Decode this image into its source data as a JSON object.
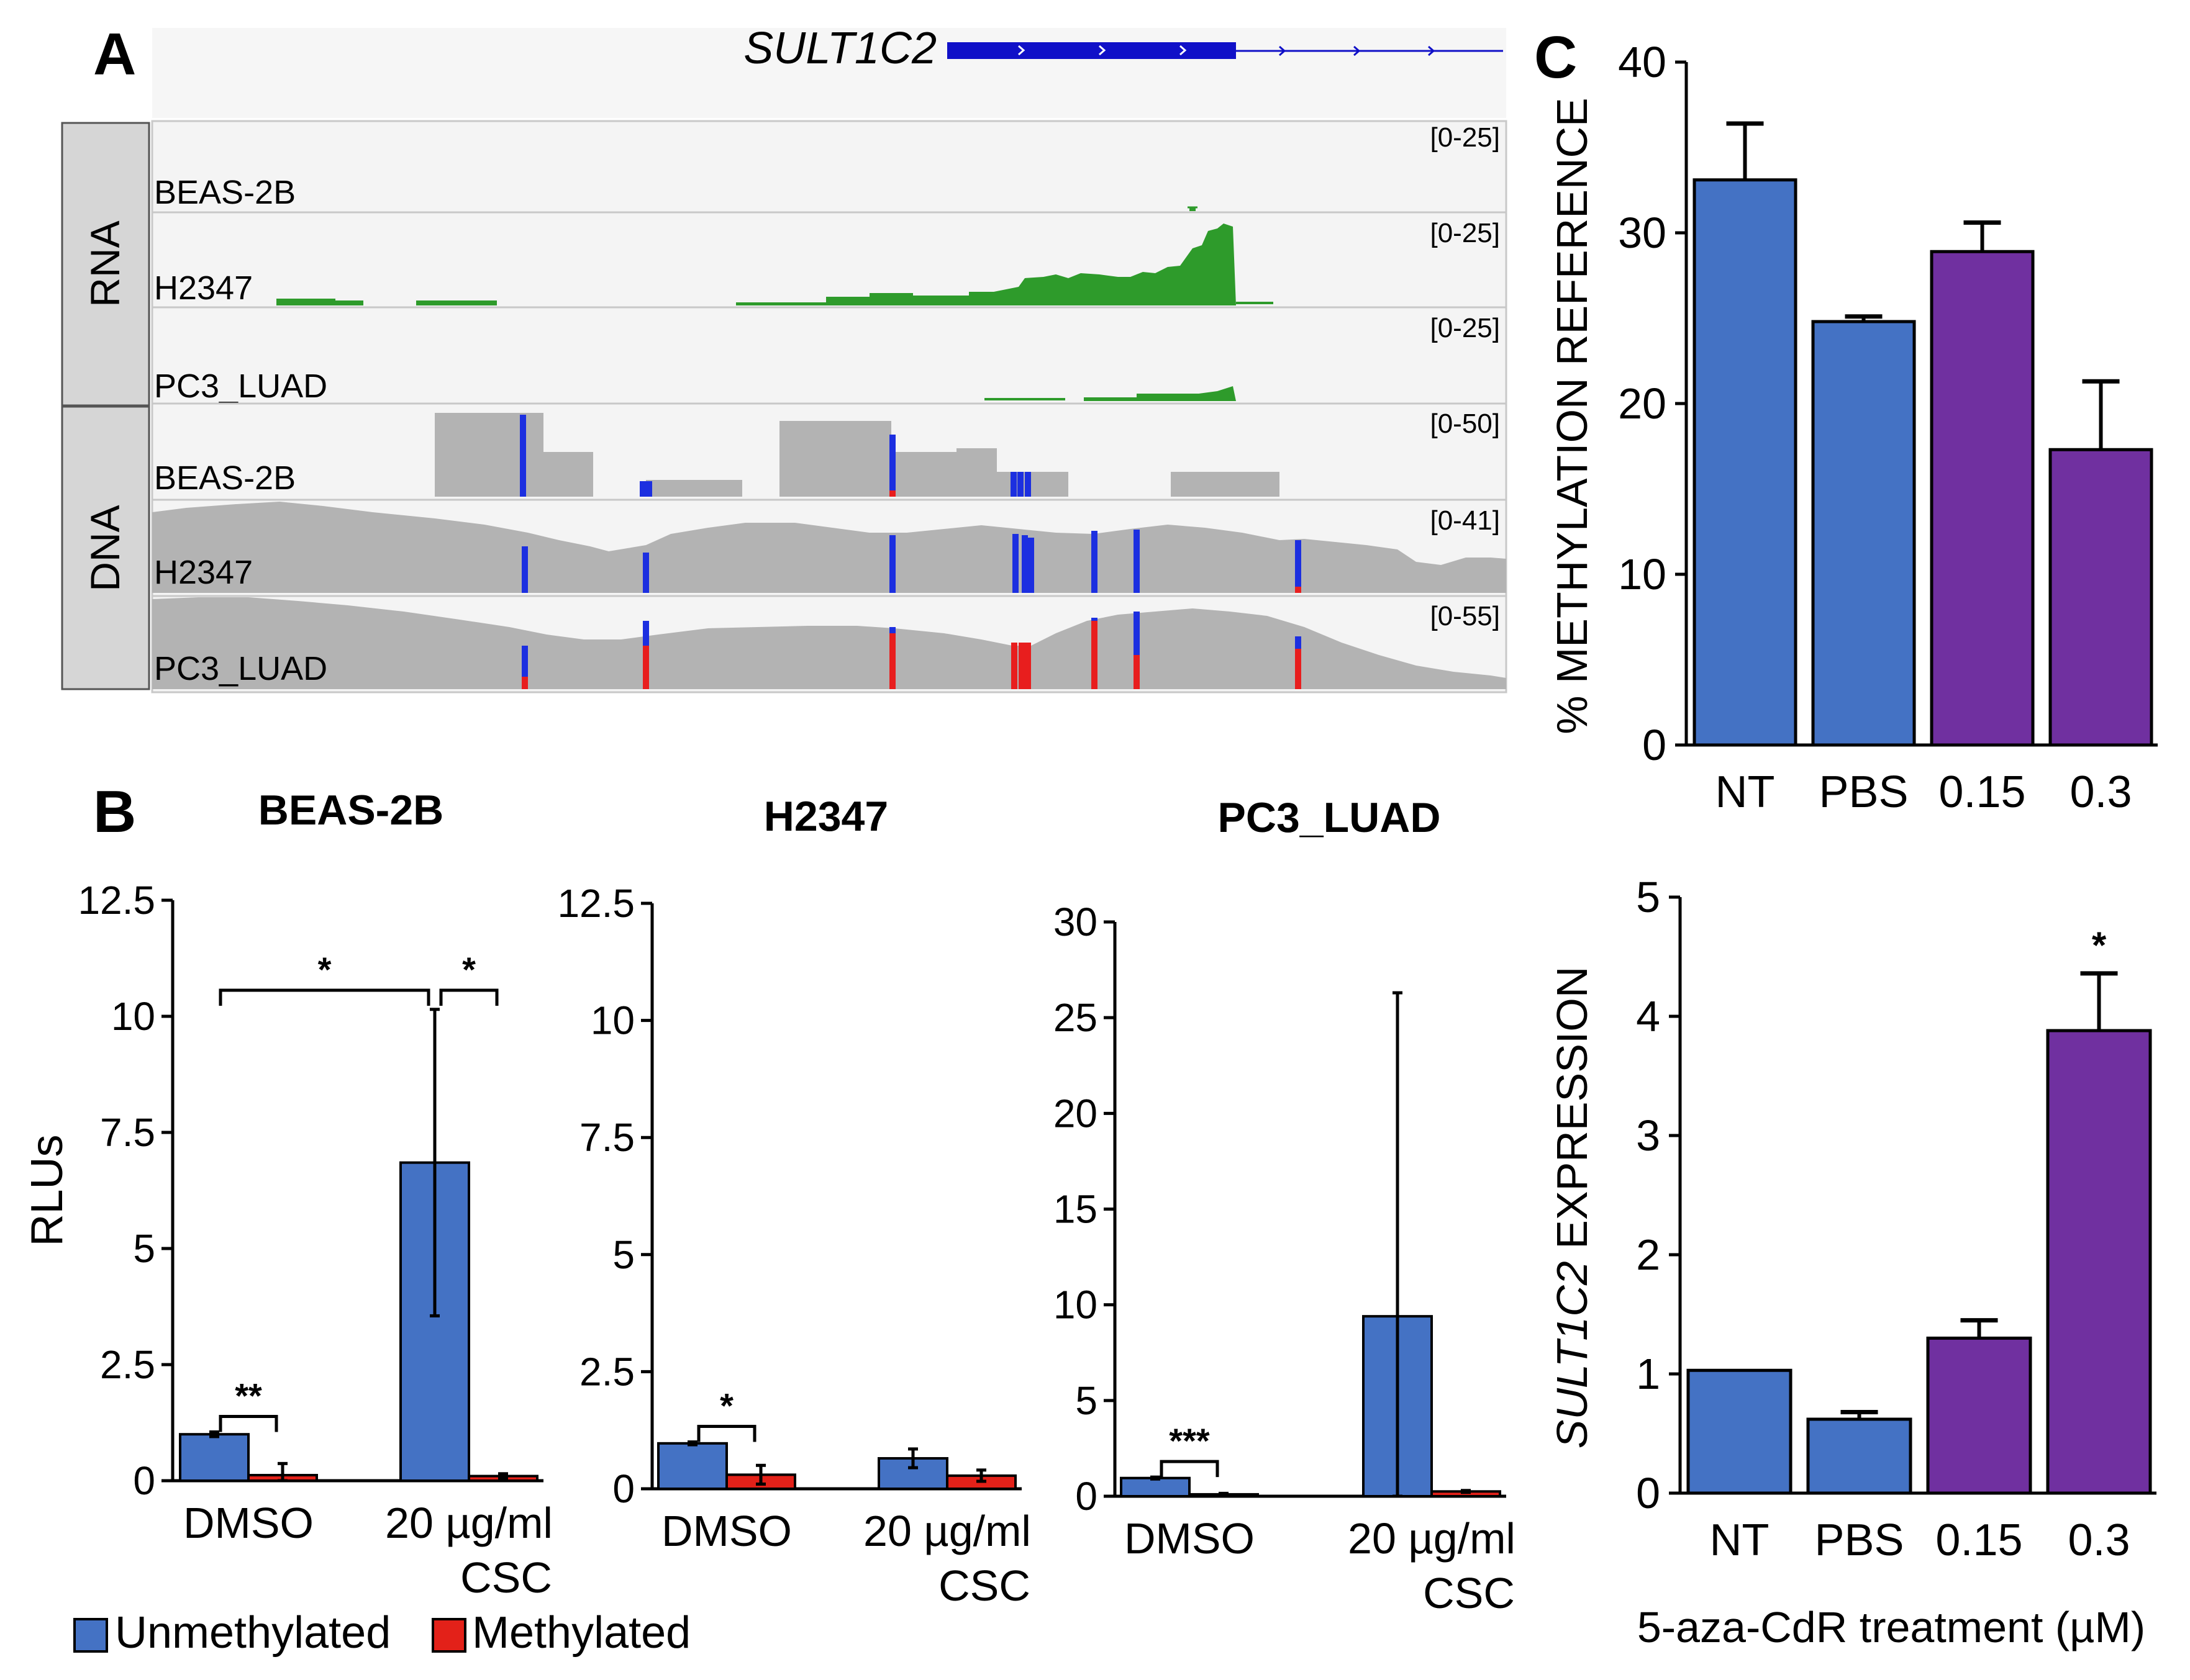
{
  "panels": {
    "a": "A",
    "b": "B",
    "c": "C"
  },
  "colors": {
    "unmethylated": "#4472C4",
    "methylated": "#E32119",
    "purple": "#7030A0",
    "rna_green": "#2E9B2B",
    "dna_gray": "#B3B3B3",
    "gene_blue": "#1010C8",
    "cpg_blue": "#1C2FE0",
    "cpg_red": "#E81E1E",
    "track_bg": "#F3F3F3",
    "label_bg": "#D6D6D6"
  },
  "panel_a": {
    "gene": "SULT1C2",
    "groups": [
      {
        "label": "RNA"
      },
      {
        "label": "DNA"
      }
    ],
    "tracks": [
      {
        "label": "BEAS-2B",
        "range": "[0-25]",
        "kind": "rna"
      },
      {
        "label": "H2347",
        "range": "[0-25]",
        "kind": "rna"
      },
      {
        "label": "PC3_LUAD",
        "range": "[0-25]",
        "kind": "rna"
      },
      {
        "label": "BEAS-2B",
        "range": "[0-50]",
        "kind": "dna"
      },
      {
        "label": "H2347",
        "range": "[0-41]",
        "kind": "dna"
      },
      {
        "label": "PC3_LUAD",
        "range": "[0-55]",
        "kind": "dna"
      }
    ]
  },
  "chart_data": [
    {
      "id": "b1",
      "type": "bar",
      "title": "BEAS-2B",
      "ylabel": "RLUs",
      "ylim": [
        0,
        12.5
      ],
      "yticks": [
        "0",
        "2.5",
        "5",
        "7.5",
        "10",
        "12.5"
      ],
      "categories": [
        {
          "line1": "DMSO",
          "line2": ""
        },
        {
          "line1": "20 µg/ml",
          "line2": "CSC"
        }
      ],
      "series": [
        {
          "name": "Unmethylated",
          "values": [
            1.0,
            6.85
          ],
          "errors": [
            0.05,
            3.3
          ]
        },
        {
          "name": "Methylated",
          "values": [
            0.12,
            0.1
          ],
          "errors": [
            0.25,
            0.05
          ]
        }
      ],
      "annotations": [
        {
          "text": "**",
          "from": [
            0,
            0
          ],
          "to": [
            0,
            1
          ]
        },
        {
          "text": "*",
          "from": [
            0,
            0
          ],
          "to": [
            1,
            0
          ]
        },
        {
          "text": "*",
          "from": [
            1,
            0
          ],
          "to": [
            1,
            1
          ]
        }
      ]
    },
    {
      "id": "b2",
      "type": "bar",
      "title": "H2347",
      "ylabel": "",
      "ylim": [
        0,
        12.5
      ],
      "yticks": [
        "0",
        "2.5",
        "5",
        "7.5",
        "10",
        "12.5"
      ],
      "categories": [
        {
          "line1": "DMSO",
          "line2": ""
        },
        {
          "line1": "20 µg/ml",
          "line2": "CSC"
        }
      ],
      "series": [
        {
          "name": "Unmethylated",
          "values": [
            0.97,
            0.65
          ],
          "errors": [
            0.03,
            0.2
          ]
        },
        {
          "name": "Methylated",
          "values": [
            0.3,
            0.28
          ],
          "errors": [
            0.2,
            0.12
          ]
        }
      ],
      "annotations": [
        {
          "text": "*",
          "from": [
            0,
            0
          ],
          "to": [
            0,
            1
          ]
        }
      ]
    },
    {
      "id": "b3",
      "type": "bar",
      "title": "PC3_LUAD",
      "ylabel": "",
      "ylim": [
        0,
        30
      ],
      "yticks": [
        "0",
        "5",
        "10",
        "15",
        "20",
        "25",
        "30"
      ],
      "categories": [
        {
          "line1": "DMSO",
          "line2": ""
        },
        {
          "line1": "20 µg/ml",
          "line2": "CSC"
        }
      ],
      "series": [
        {
          "name": "Unmethylated",
          "values": [
            0.95,
            9.4
          ],
          "errors": [
            0.05,
            16.9
          ]
        },
        {
          "name": "Methylated",
          "values": [
            0.1,
            0.25
          ],
          "errors": [
            0.05,
            0.05
          ]
        }
      ],
      "annotations": [
        {
          "text": "***",
          "from": [
            0,
            0
          ],
          "to": [
            0,
            1
          ]
        }
      ]
    },
    {
      "id": "c1",
      "type": "bar",
      "title": "",
      "ylabel": "% METHYLATION REFERENCE",
      "ylim": [
        0,
        40
      ],
      "yticks": [
        "0",
        "10",
        "20",
        "30",
        "40"
      ],
      "categories": [
        "NT",
        "PBS",
        "0.15",
        "0.3"
      ],
      "values": [
        33.1,
        24.8,
        28.9,
        17.3
      ],
      "errors": [
        3.3,
        0.3,
        1.7,
        4.0
      ],
      "bar_colors": [
        "blue",
        "blue",
        "purple",
        "purple"
      ],
      "stars": [
        "",
        "",
        "",
        ""
      ]
    },
    {
      "id": "c2",
      "type": "bar",
      "title": "",
      "ylabel_italic": "SULT1C2",
      "ylabel_rest": " EXPRESSION",
      "xlabel": "5-aza-CdR treatment (µM)",
      "ylim": [
        0,
        5
      ],
      "yticks": [
        "0",
        "1",
        "2",
        "3",
        "4",
        "5"
      ],
      "categories": [
        "NT",
        "PBS",
        "0.15",
        "0.3"
      ],
      "values": [
        1.03,
        0.62,
        1.3,
        3.88
      ],
      "errors": [
        0.0,
        0.06,
        0.15,
        0.48
      ],
      "bar_colors": [
        "blue",
        "blue",
        "purple",
        "purple"
      ],
      "stars": [
        "",
        "",
        "",
        "*"
      ]
    }
  ],
  "legend": [
    {
      "label": "Unmethylated",
      "color": "unmethylated"
    },
    {
      "label": "Methylated",
      "color": "methylated"
    }
  ]
}
